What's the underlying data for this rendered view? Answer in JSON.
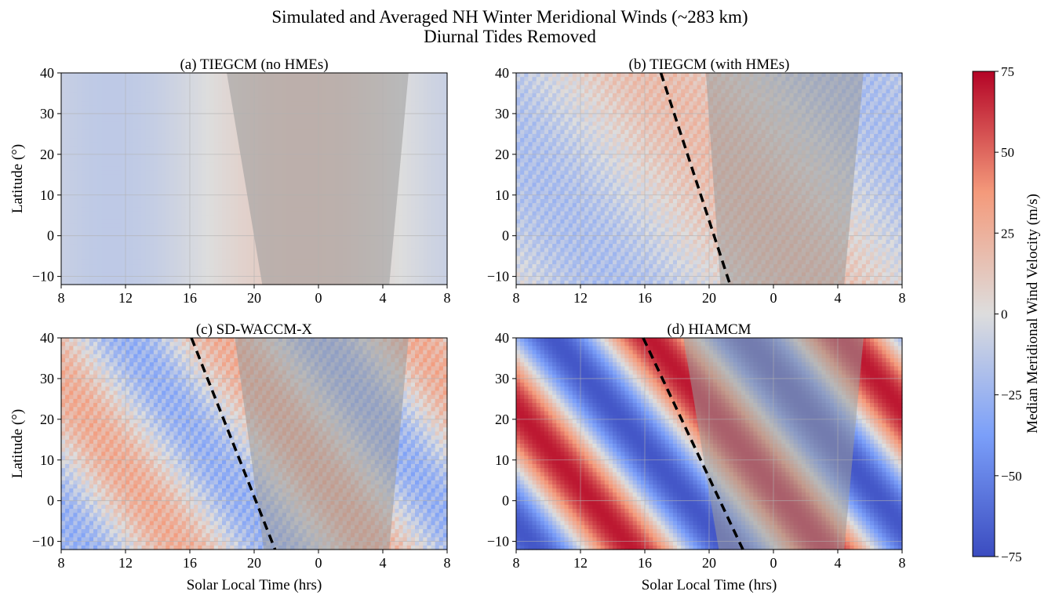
{
  "figure": {
    "title": "Simulated and Averaged NH Winter Meridional Winds (~283 km)",
    "subtitle": "Diurnal Tides Removed"
  },
  "colorbar": {
    "label": "Median Meridional Wind Velocity (m/s)",
    "range": [
      -75,
      75
    ],
    "ticks": [
      75,
      50,
      25,
      0,
      -25,
      -50,
      -75
    ],
    "tick_labels": [
      "75",
      "50",
      "25",
      "0",
      "−25",
      "−50",
      "−75"
    ],
    "colormap": "coolwarm",
    "colors": {
      "low": "#3b4cc0",
      "mid": "#dddddd",
      "high": "#b40426"
    }
  },
  "chart_data": [
    {
      "type": "heatmap",
      "title": "(a) TIEGCM (no HMEs)",
      "xlabel": "",
      "ylabel": "Latitude (°)",
      "x_tick_labels": [
        "8",
        "12",
        "16",
        "20",
        "0",
        "4",
        "8"
      ],
      "y_tick_labels": [
        "40",
        "30",
        "20",
        "10",
        "0",
        "−10"
      ],
      "x_ticks_slt": [
        8,
        12,
        16,
        20,
        24,
        28,
        32
      ],
      "y_ticks": [
        40,
        30,
        20,
        10,
        0,
        -10
      ],
      "xlim_slt": [
        8,
        32
      ],
      "ylim": [
        -12,
        40
      ],
      "grid": true,
      "wave": {
        "amp": 12,
        "k": 1,
        "phase": 1.8,
        "slope": 0,
        "harmonic": 0
      },
      "night_mask": {
        "slt_start_at_40": 18.3,
        "slt_start_at_-12": 20.5,
        "slt_end_at_40": 29.6,
        "slt_end_at_-12": 28.4
      },
      "dashed_line": null
    },
    {
      "type": "heatmap",
      "title": "(b) TIEGCM (with HMEs)",
      "xlabel": "",
      "ylabel": "",
      "x_tick_labels": [
        "8",
        "12",
        "16",
        "20",
        "0",
        "4",
        "8"
      ],
      "y_tick_labels": [
        "40",
        "30",
        "20",
        "10",
        "0",
        "−10"
      ],
      "x_ticks_slt": [
        8,
        12,
        16,
        20,
        24,
        28,
        32
      ],
      "y_ticks": [
        40,
        30,
        20,
        10,
        0,
        -10
      ],
      "xlim_slt": [
        8,
        32
      ],
      "ylim": [
        -12,
        40
      ],
      "grid": true,
      "wave": {
        "amp": 18,
        "k": 1,
        "phase": 1.6,
        "slope": 0.015,
        "harmonic": 8
      },
      "night_mask": {
        "slt_start_at_40": 19.8,
        "slt_start_at_-12": 20.7,
        "slt_end_at_40": 29.6,
        "slt_end_at_-12": 28.4
      },
      "dashed_line": {
        "slt_at_40": 17.0,
        "slt_at_-12": 21.3
      }
    },
    {
      "type": "heatmap",
      "title": "(c) SD-WACCM-X",
      "xlabel": "Solar Local Time (hrs)",
      "ylabel": "Latitude (°)",
      "x_tick_labels": [
        "8",
        "12",
        "16",
        "20",
        "0",
        "4",
        "8"
      ],
      "y_tick_labels": [
        "40",
        "30",
        "20",
        "10",
        "0",
        "−10"
      ],
      "x_ticks_slt": [
        8,
        12,
        16,
        20,
        24,
        28,
        32
      ],
      "y_ticks": [
        40,
        30,
        20,
        10,
        0,
        -10
      ],
      "xlim_slt": [
        8,
        32
      ],
      "ylim": [
        -12,
        40
      ],
      "grid": true,
      "wave": {
        "amp": 26,
        "k": 2,
        "phase": 0.9,
        "slope": 0.03,
        "harmonic": 10
      },
      "night_mask": {
        "slt_start_at_40": 18.8,
        "slt_start_at_-12": 20.6,
        "slt_end_at_40": 29.6,
        "slt_end_at_-12": 28.4
      },
      "dashed_line": {
        "slt_at_40": 16.1,
        "slt_at_-12": 21.3
      }
    },
    {
      "type": "heatmap",
      "title": "(d) HIAMCM",
      "xlabel": "Solar Local Time (hrs)",
      "ylabel": "",
      "x_tick_labels": [
        "8",
        "12",
        "16",
        "20",
        "0",
        "4",
        "8"
      ],
      "y_tick_labels": [
        "40",
        "30",
        "20",
        "10",
        "0",
        "−10"
      ],
      "x_ticks_slt": [
        8,
        12,
        16,
        20,
        24,
        28,
        32
      ],
      "y_ticks": [
        40,
        30,
        20,
        10,
        0,
        -10
      ],
      "xlim_slt": [
        8,
        32
      ],
      "ylim": [
        -12,
        40
      ],
      "grid": true,
      "wave": {
        "amp": 70,
        "k": 2,
        "phase": 1.2,
        "slope": 0.035,
        "harmonic": 0
      },
      "night_mask": {
        "slt_start_at_40": 18.4,
        "slt_start_at_-12": 20.6,
        "slt_end_at_40": 29.6,
        "slt_end_at_-12": 28.4
      },
      "dashed_line": {
        "slt_at_40": 15.9,
        "slt_at_-12": 22.1
      }
    }
  ]
}
